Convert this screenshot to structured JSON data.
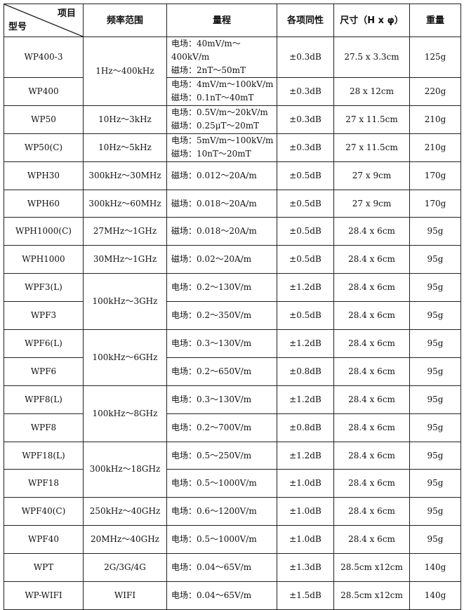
{
  "header": {
    "item": "项目",
    "model": "型号",
    "frequency": "频率范围",
    "range": "量程",
    "isotropy": "各项同性",
    "size": "尺寸（H x φ）",
    "weight": "重量"
  },
  "rows": [
    {
      "model": "WP400-3",
      "freq": "1Hz～400kHz",
      "freq_rowspan": 2,
      "range": [
        "电场：40mV/m～400kV/m",
        "磁场：2nT～50mT"
      ],
      "iso": "±0.3dB",
      "size": "27.5 x 3.3cm",
      "weight": "125g"
    },
    {
      "model": "WP400",
      "freq": null,
      "range": [
        "电场：4mV/m～100kV/m",
        "磁场：0.1nT～40mT"
      ],
      "iso": "±0.3dB",
      "size": "28 x 12cm",
      "weight": "220g"
    },
    {
      "model": "WP50",
      "freq": "10Hz～3kHz",
      "range": [
        "电场：0.5V/m～20kV/m",
        "磁场：0.25μT～20mT"
      ],
      "iso": "±0.3dB",
      "size": "27 x 11.5cm",
      "weight": "210g"
    },
    {
      "model": "WP50(C)",
      "freq": "10Hz～5kHz",
      "range": [
        "电场：5mV/m～100kV/m",
        "磁场：10nT～20mT"
      ],
      "iso": "±0.3dB",
      "size": "27 x 11.5cm",
      "weight": "210g"
    },
    {
      "model": "WPH30",
      "freq": "300kHz～30MHz",
      "range": [
        "磁场：0.012～20A/m"
      ],
      "iso": "±0.5dB",
      "size": "27 x 9cm",
      "weight": "170g"
    },
    {
      "model": "WPH60",
      "freq": "300kHz～60MHz",
      "range": [
        "磁场：0.018～20A/m"
      ],
      "iso": "±0.5dB",
      "size": "27 x 9cm",
      "weight": "170g"
    },
    {
      "model": "WPH1000(C)",
      "freq": "27MHz～1GHz",
      "range": [
        "磁场：0.018～20A/m"
      ],
      "iso": "±0.5dB",
      "size": "28.4 x 6cm",
      "weight": "95g"
    },
    {
      "model": "WPH1000",
      "freq": "30MHz～1GHz",
      "range": [
        "磁场：0.02～20A/m"
      ],
      "iso": "±0.5dB",
      "size": "28.4 x 6cm",
      "weight": "95g"
    },
    {
      "model": "WPF3(L)",
      "freq": "100kHz～3GHz",
      "freq_rowspan": 2,
      "range": [
        "电场：0.2～130V/m"
      ],
      "iso": "±1.2dB",
      "size": "28.4 x 6cm",
      "weight": "95g"
    },
    {
      "model": "WPF3",
      "freq": null,
      "range": [
        "电场：0.2～350V/m"
      ],
      "iso": "±0.5dB",
      "size": "28.4 x 6cm",
      "weight": "95g"
    },
    {
      "model": "WPF6(L)",
      "freq": "100kHz～6GHz",
      "freq_rowspan": 2,
      "range": [
        "电场：0.3～130V/m"
      ],
      "iso": "±1.2dB",
      "size": "28.4 x 6cm",
      "weight": "95g"
    },
    {
      "model": "WPF6",
      "freq": null,
      "range": [
        "电场：0.2～650V/m"
      ],
      "iso": "±0.8dB",
      "size": "28.4 x 6cm",
      "weight": "95g"
    },
    {
      "model": "WPF8(L)",
      "freq": "100kHz～8GHz",
      "freq_rowspan": 2,
      "range": [
        "电场：0.3～130V/m"
      ],
      "iso": "±1.2dB",
      "size": "28.4 x 6cm",
      "weight": "95g"
    },
    {
      "model": "WPF8",
      "freq": null,
      "range": [
        "电场：0.2～700V/m"
      ],
      "iso": "±0.8dB",
      "size": "28.4 x 6cm",
      "weight": "95g"
    },
    {
      "model": "WPF18(L)",
      "freq": "300kHz～18GHz",
      "freq_rowspan": 2,
      "range": [
        "电场：0.5～250V/m"
      ],
      "iso": "±1.2dB",
      "size": "28.4 x 6cm",
      "weight": "95g"
    },
    {
      "model": "WPF18",
      "freq": null,
      "range": [
        "电场：0.5～1000V/m"
      ],
      "iso": "±1.0dB",
      "size": "28.4 x 6cm",
      "weight": "95g"
    },
    {
      "model": "WPF40(C)",
      "freq": "250kHz～40GHz",
      "range": [
        "电场：0.6～1200V/m"
      ],
      "iso": "±1.0dB",
      "size": "28.4 x 6cm",
      "weight": "95g"
    },
    {
      "model": "WPF40",
      "freq": "20MHz～40GHz",
      "range": [
        "电场：0.5～1000V/m"
      ],
      "iso": "±1.0dB",
      "size": "28.4 x 6cm",
      "weight": "95g"
    },
    {
      "model": "WPT",
      "freq": "2G/3G/4G",
      "range": [
        "电场：0.04～65V/m"
      ],
      "iso": "±1.3dB",
      "size": "28.5cm x12cm",
      "weight": "140g"
    },
    {
      "model": "WP-WIFI",
      "freq": "WIFI",
      "range": [
        "电场：0.04～65V/m"
      ],
      "iso": "±1.5dB",
      "size": "28.5cm x12cm",
      "weight": "140g"
    }
  ]
}
